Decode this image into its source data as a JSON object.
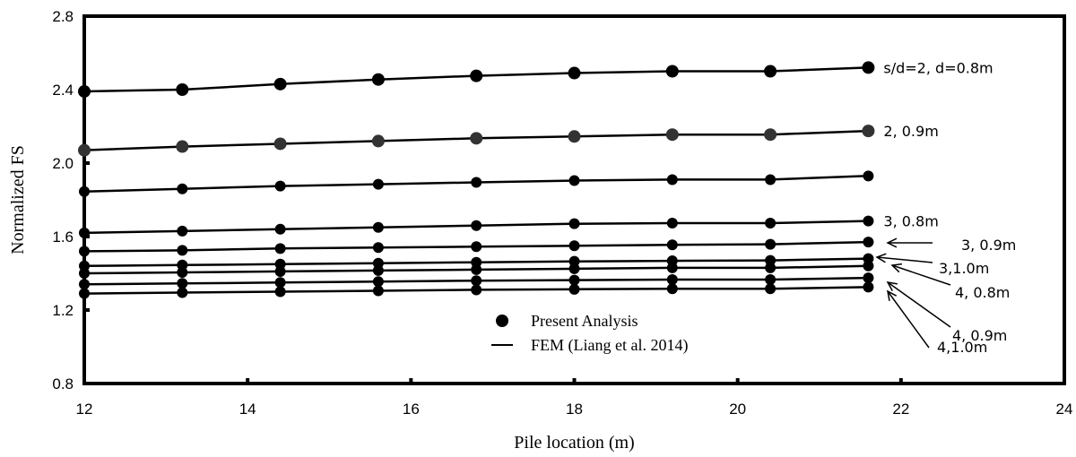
{
  "chart_data": {
    "type": "line",
    "xlabel": "Pile location (m)",
    "ylabel": "Normalized FS",
    "xlim": [
      12,
      24
    ],
    "ylim": [
      0.8,
      2.8
    ],
    "x_ticks": [
      "12",
      "14",
      "16",
      "18",
      "20",
      "22",
      "24"
    ],
    "y_ticks": [
      "0.8",
      "1.2",
      "1.6",
      "2.0",
      "2.4",
      "2.8"
    ],
    "x": [
      12,
      13.2,
      14.4,
      15.6,
      16.8,
      18,
      19.2,
      20.4,
      21.6
    ],
    "series": [
      {
        "name": "s/d=2, d=0.8m",
        "values": [
          2.39,
          2.4,
          2.43,
          2.455,
          2.475,
          2.49,
          2.5,
          2.5,
          2.52
        ]
      },
      {
        "name": "2, 0.9m",
        "values": [
          2.07,
          2.09,
          2.105,
          2.12,
          2.135,
          2.145,
          2.155,
          2.155,
          2.175
        ]
      },
      {
        "name": "",
        "values": [
          1.845,
          1.86,
          1.875,
          1.885,
          1.895,
          1.905,
          1.91,
          1.91,
          1.93
        ]
      },
      {
        "name": "3, 0.8m",
        "values": [
          1.62,
          1.63,
          1.64,
          1.65,
          1.66,
          1.67,
          1.673,
          1.673,
          1.685
        ]
      },
      {
        "name": "3, 0.9m",
        "values": [
          1.52,
          1.525,
          1.535,
          1.54,
          1.545,
          1.55,
          1.555,
          1.558,
          1.57
        ]
      },
      {
        "name": "3,1.0m",
        "values": [
          1.44,
          1.445,
          1.45,
          1.455,
          1.46,
          1.465,
          1.468,
          1.47,
          1.48
        ]
      },
      {
        "name": "4, 0.8m",
        "values": [
          1.4,
          1.405,
          1.41,
          1.415,
          1.42,
          1.425,
          1.43,
          1.43,
          1.44
        ]
      },
      {
        "name": "4, 0.9m",
        "values": [
          1.34,
          1.345,
          1.35,
          1.355,
          1.36,
          1.363,
          1.366,
          1.366,
          1.375
        ]
      },
      {
        "name": "4,1.0m",
        "values": [
          1.29,
          1.295,
          1.3,
          1.305,
          1.31,
          1.313,
          1.316,
          1.316,
          1.325
        ]
      }
    ],
    "legend": {
      "position": "bottom-center",
      "items": [
        "Present Analysis",
        "FEM  (Liang et al. 2014)"
      ]
    },
    "grid": false
  }
}
